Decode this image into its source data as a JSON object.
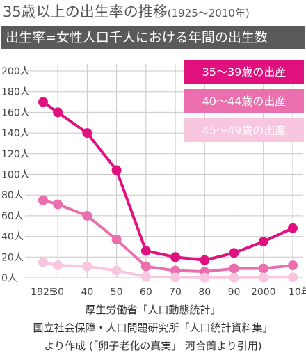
{
  "title": {
    "main": "35歳以上の出生率の推移",
    "range": "(1925〜2010年)"
  },
  "subtitle": "出生率=女性人口千人における年間の出生数",
  "source_lines": [
    "厚生労働省「人口動態統計」",
    "国立社会保障・人口問題研究所「人口統計資料集」",
    "より作成 (「卵子老化の真実」 河合蘭より引用)"
  ],
  "colors": {
    "grid": "#c8c8c8",
    "axis_text": "#444444"
  },
  "chart_data": {
    "type": "line",
    "xlabel": "",
    "ylabel": "",
    "x": [
      1925,
      1930,
      1940,
      1950,
      1960,
      1970,
      1980,
      1990,
      2000,
      2010
    ],
    "x_tick_labels": [
      "1925",
      "30",
      "40",
      "50",
      "60",
      "70",
      "80",
      "90",
      "2000",
      "10年"
    ],
    "y_ticks": [
      0,
      20,
      40,
      60,
      80,
      100,
      120,
      140,
      160,
      180,
      200
    ],
    "y_tick_labels": [
      "0人",
      "20人",
      "40人",
      "60人",
      "80人",
      "100人",
      "120人",
      "140人",
      "160人",
      "180人",
      "200人"
    ],
    "ylim": [
      0,
      200
    ],
    "grid": true,
    "legend_position": "top-right",
    "series": [
      {
        "name": "35〜39歳の出産",
        "color": "#e0107f",
        "values": [
          170,
          160,
          140,
          104,
          26,
          20,
          17,
          24,
          35,
          48
        ]
      },
      {
        "name": "40〜44歳の出産",
        "color": "#eb6fae",
        "values": [
          75,
          71,
          60,
          37,
          11,
          7,
          6,
          9,
          9,
          12
        ]
      },
      {
        "name": "45〜49歳の出産",
        "color": "#f8c6df",
        "values": [
          15,
          12,
          11,
          7,
          1,
          0.4,
          0.2,
          0.2,
          0.3,
          0.5
        ]
      }
    ]
  }
}
